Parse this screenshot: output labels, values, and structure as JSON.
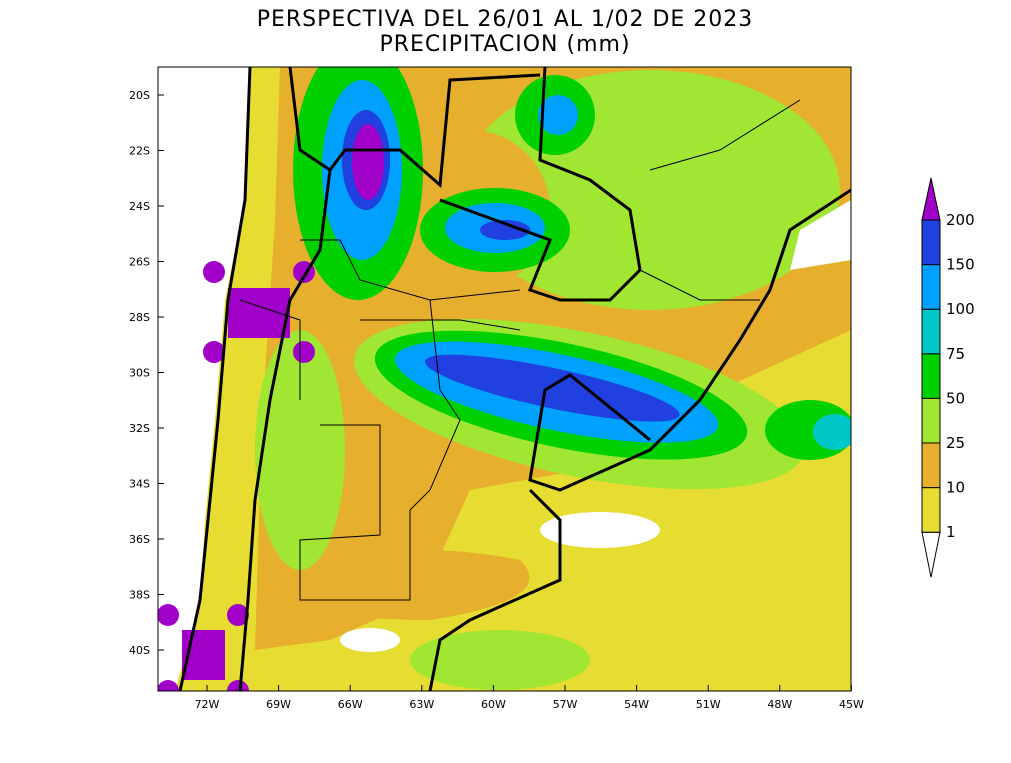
{
  "map": {
    "title": [
      "PERSPECTIVA DEL 26/01 AL 1/02 DE 2023",
      "PRECIPITACION (mm)"
    ],
    "lat_labels": [
      "20S",
      "22S",
      "24S",
      "26S",
      "28S",
      "30S",
      "32S",
      "34S",
      "36S",
      "38S",
      "40S"
    ],
    "lon_labels": [
      "72W",
      "69W",
      "66W",
      "63W",
      "60W",
      "57W",
      "54W",
      "51W",
      "48W",
      "45W"
    ],
    "colorbar": {
      "levels": [
        1,
        10,
        25,
        50,
        75,
        100,
        150,
        200
      ],
      "colors": [
        "#ffffff",
        "#e6dc32",
        "#e6af2d",
        "#a0e632",
        "#00d000",
        "#00c8c8",
        "#00a0ff",
        "#2040e0",
        "#a000c8"
      ]
    }
  }
}
